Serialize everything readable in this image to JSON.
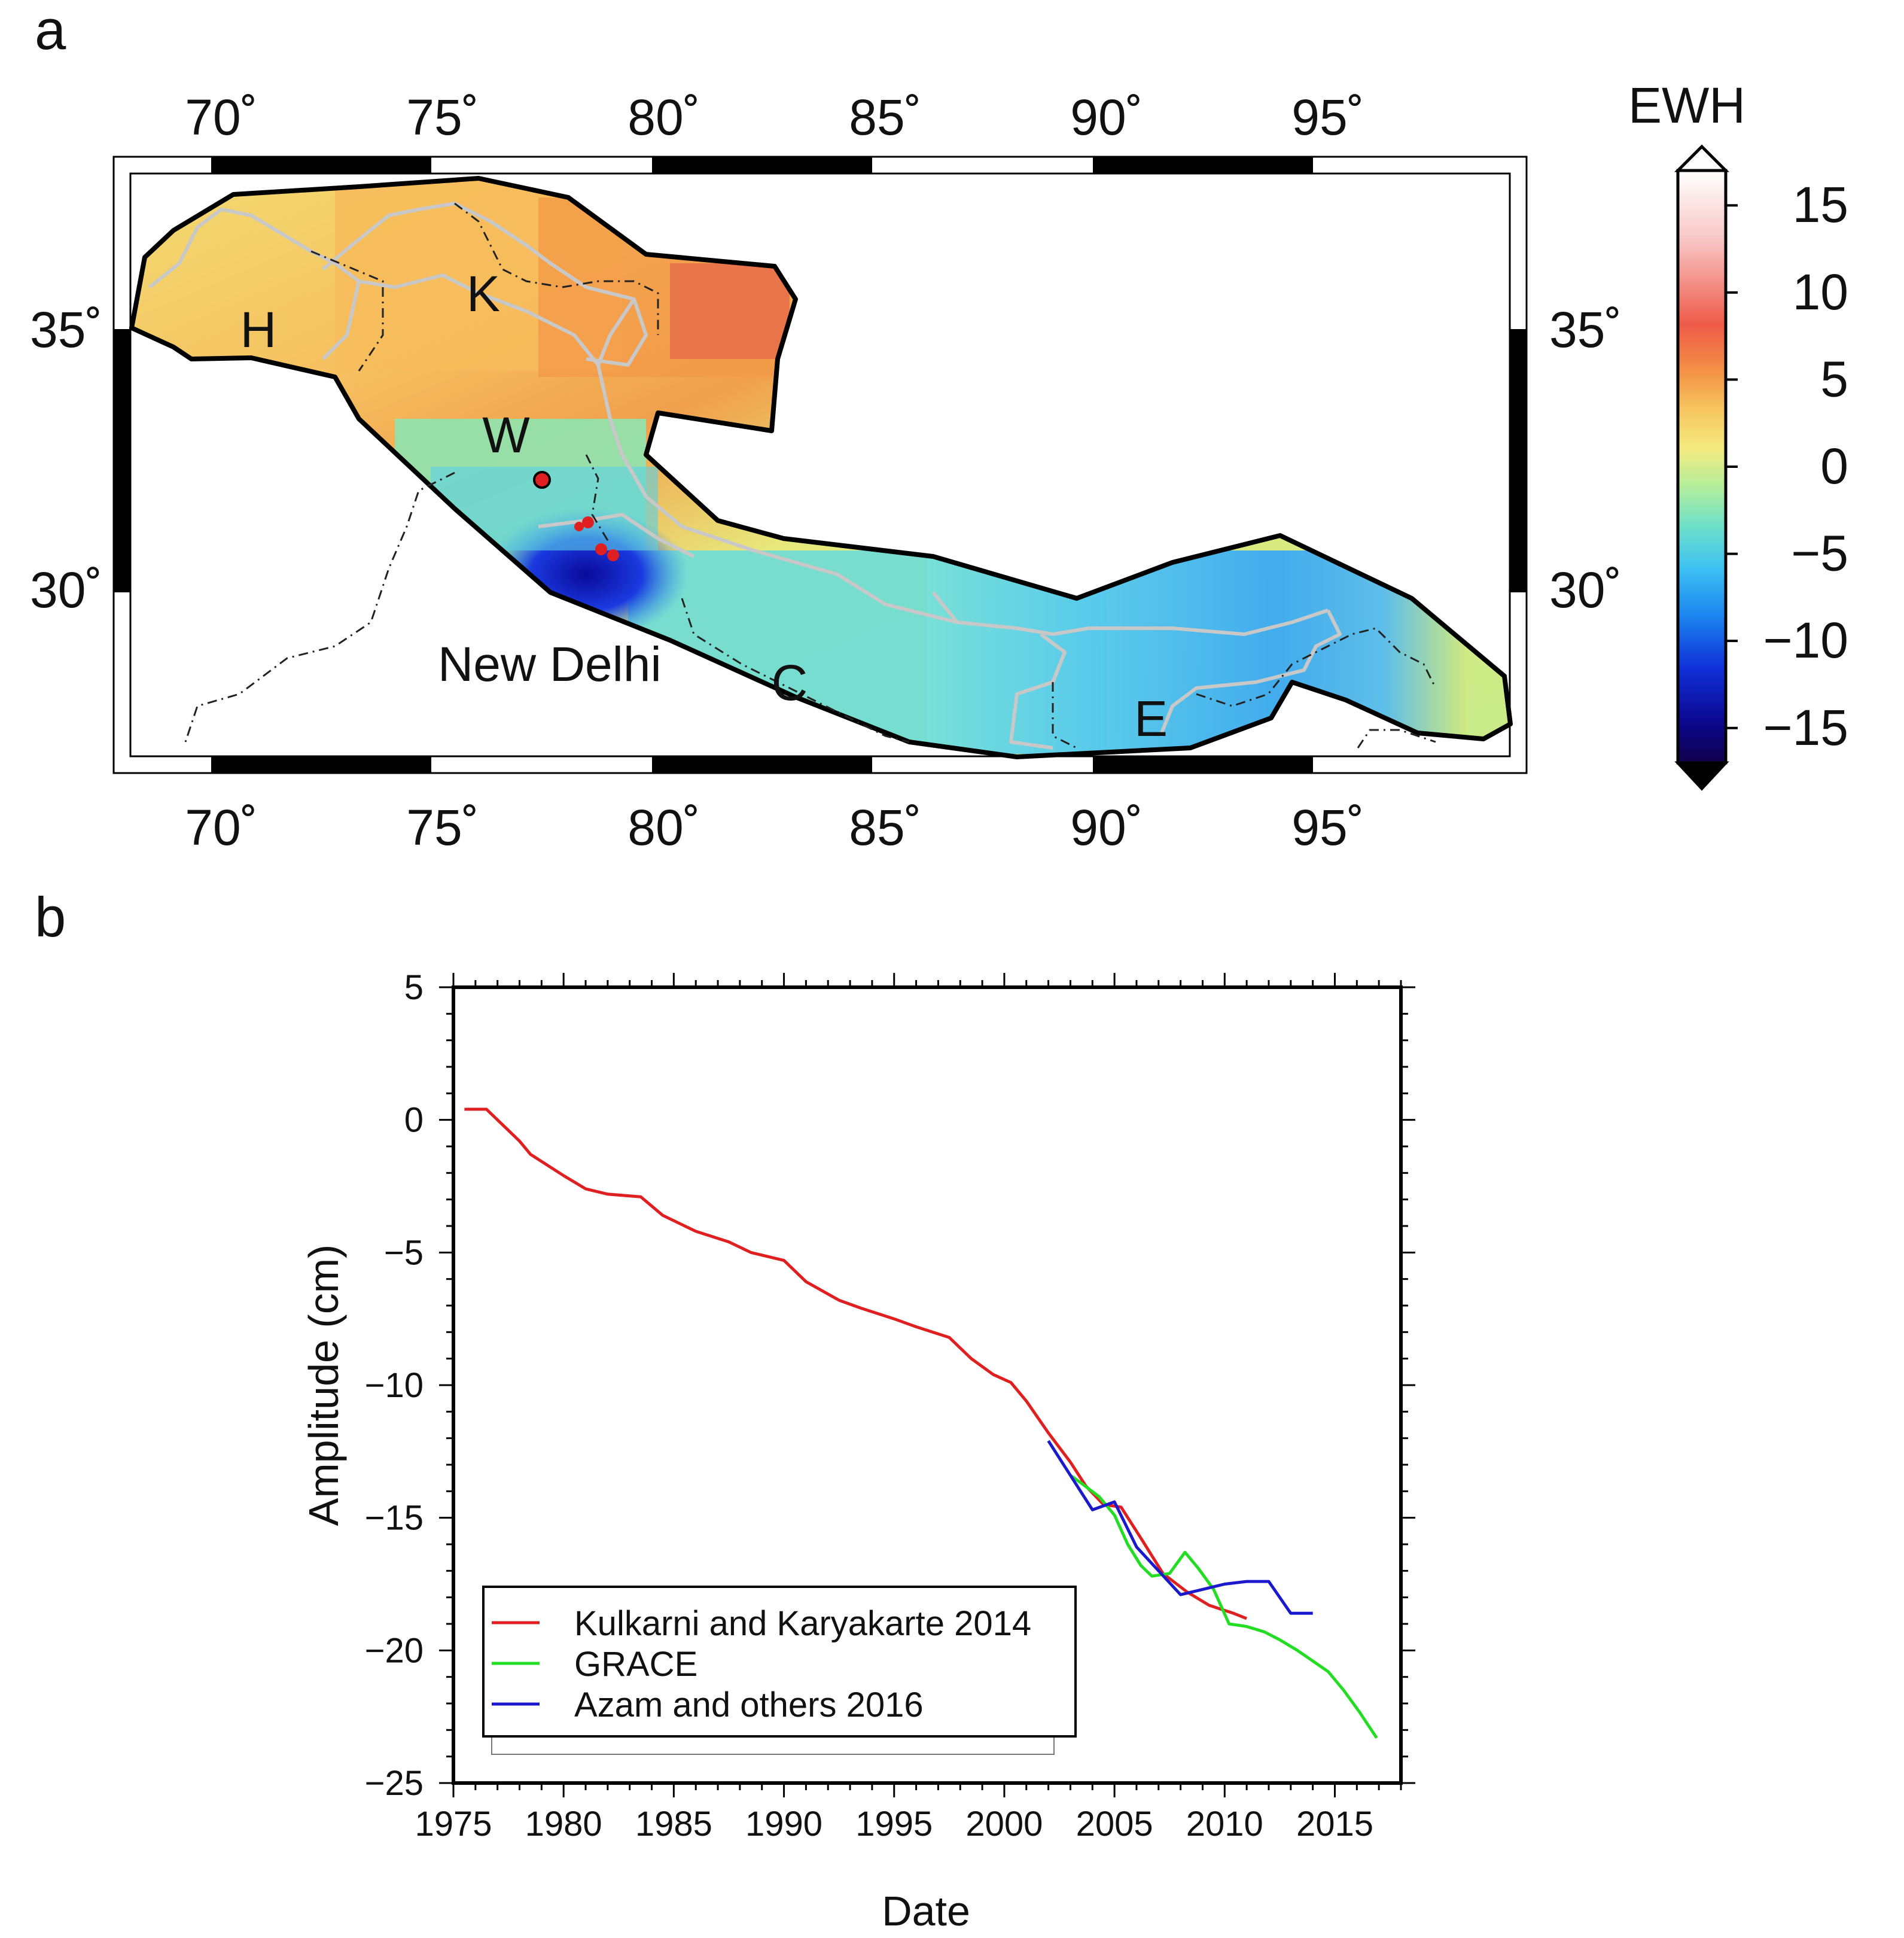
{
  "panel_a": {
    "label": "a",
    "lon_ticks": [
      "70˚",
      "75˚",
      "80˚",
      "85˚",
      "90˚",
      "95˚"
    ],
    "lat_ticks": [
      "35˚",
      "30˚"
    ],
    "region_labels": [
      "H",
      "K",
      "W",
      "C",
      "E"
    ],
    "city_label": "New Delhi",
    "colorbar": {
      "title": "EWH",
      "tick_labels": [
        "15",
        "10",
        "5",
        "0",
        "−5",
        "−10",
        "−15"
      ],
      "range": [
        -17,
        17
      ]
    }
  },
  "panel_b": {
    "label": "b",
    "xlabel": "Date",
    "ylabel": "Amplitude (cm)",
    "y_tick_labels": [
      "5",
      "0",
      "−5",
      "−10",
      "−15",
      "−20",
      "−25"
    ],
    "x_tick_labels": [
      "1975",
      "1980",
      "1985",
      "1990",
      "1995",
      "2000",
      "2005",
      "2010",
      "2015"
    ],
    "legend": [
      {
        "label": "Kulkarni and Karyakarte 2014",
        "color": "#e02020"
      },
      {
        "label": "GRACE",
        "color": "#22dd22"
      },
      {
        "label": "Azam and others 2016",
        "color": "#1a1acc"
      }
    ]
  },
  "chart_data": {
    "type": "line",
    "title": "",
    "xlabel": "Date",
    "ylabel": "Amplitude (cm)",
    "xlim": [
      1975,
      2018
    ],
    "ylim": [
      -25,
      5
    ],
    "series": [
      {
        "name": "Kulkarni and Karyakarte 2014",
        "color": "#e02020",
        "x": [
          1975.5,
          1976.5,
          1977,
          1978,
          1978.5,
          1980,
          1981,
          1982,
          1983.5,
          1984.5,
          1986,
          1987.5,
          1988.5,
          1990,
          1991,
          1992.5,
          1993.5,
          1995,
          1996,
          1997.5,
          1998.5,
          1999.5,
          2000.3,
          2001,
          2002,
          2003,
          2003.7,
          2004.5,
          2005.3,
          2006.3,
          2007.2,
          2008.3,
          2009.3,
          2010.4,
          2011
        ],
        "y": [
          0.4,
          0.4,
          0.0,
          -0.8,
          -1.3,
          -2.1,
          -2.6,
          -2.8,
          -2.9,
          -3.6,
          -4.2,
          -4.6,
          -5.0,
          -5.3,
          -6.1,
          -6.8,
          -7.1,
          -7.5,
          -7.8,
          -8.2,
          -9.0,
          -9.6,
          -9.9,
          -10.6,
          -11.8,
          -12.9,
          -13.8,
          -14.5,
          -14.6,
          -15.9,
          -17.1,
          -17.8,
          -18.3,
          -18.6,
          -18.8
        ]
      },
      {
        "name": "GRACE",
        "color": "#22dd22",
        "x": [
          2003,
          2003.5,
          2004.3,
          2005,
          2005.6,
          2006.2,
          2006.7,
          2007.5,
          2008.2,
          2008.8,
          2009.5,
          2010.2,
          2011,
          2011.8,
          2012.5,
          2013.3,
          2014,
          2014.7,
          2015.4,
          2016.1,
          2016.9
        ],
        "y": [
          -13.4,
          -13.7,
          -14.2,
          -14.9,
          -16.0,
          -16.8,
          -17.2,
          -17.1,
          -16.3,
          -16.9,
          -17.7,
          -19.0,
          -19.1,
          -19.3,
          -19.6,
          -20.0,
          -20.4,
          -20.8,
          -21.5,
          -22.3,
          -23.3
        ]
      },
      {
        "name": "Azam and others 2016",
        "color": "#1a1acc",
        "x": [
          2002,
          2003,
          2004,
          2005,
          2006,
          2007,
          2008,
          2009,
          2010,
          2011,
          2012,
          2013,
          2014
        ],
        "y": [
          -12.1,
          -13.4,
          -14.7,
          -14.4,
          -16.1,
          -17.0,
          -17.9,
          -17.7,
          -17.5,
          -17.4,
          -17.4,
          -18.6,
          -18.6
        ]
      }
    ]
  }
}
